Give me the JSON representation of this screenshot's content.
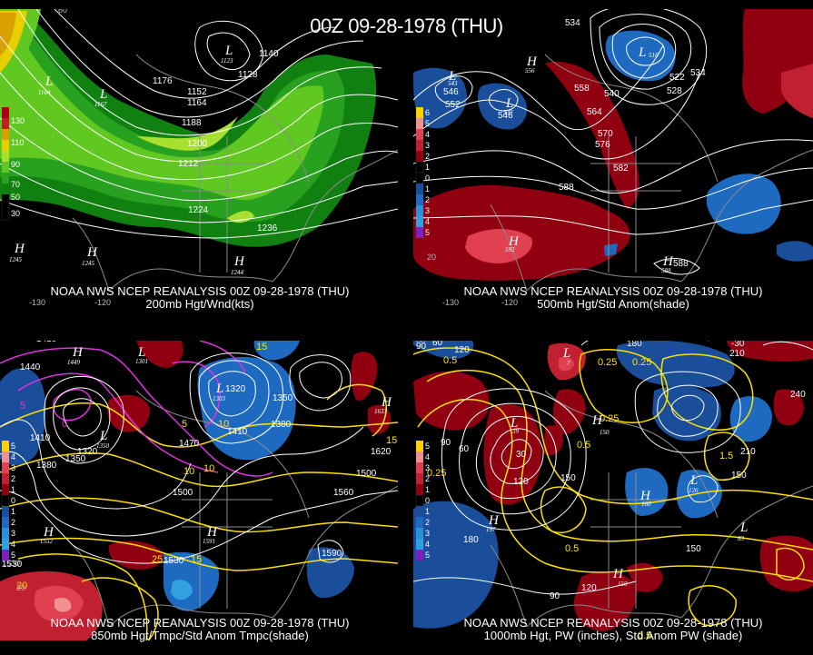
{
  "title": "00Z 09-28-1978 (THU)",
  "colors": {
    "background": "#000000",
    "wind_shades": [
      "#b00010",
      "#c02020",
      "#d8a000",
      "#e8d000",
      "#a8e030",
      "#60c820",
      "#28a020",
      "#108010"
    ],
    "anom_positive": [
      "#900010",
      "#c02030",
      "#e04050",
      "#f09090",
      "#ffd000"
    ],
    "anom_negative": [
      "#1a4e9a",
      "#1e6ac0",
      "#2a90d8",
      "#30a0e0",
      "#8020c0"
    ],
    "contour_white": "#ffffff",
    "contour_yellow": "#ffe000",
    "contour_magenta": "#e030e0"
  },
  "panels": [
    {
      "id": "200mb",
      "caption_line1": "NOAA NWS NCEP REANALYSIS 00Z 09-28-1978 (THU)",
      "caption_line2": "200mb Hgt/Wnd(kts)",
      "colorbar": [
        "130",
        "110",
        "90",
        "70",
        "50",
        "30"
      ],
      "contour_labels": [
        "1176",
        "1152",
        "1164",
        "1188",
        "1200",
        "1212",
        "1224",
        "1236",
        "1128",
        "1140"
      ],
      "centers": [
        {
          "type": "L",
          "value": "1164"
        },
        {
          "type": "L",
          "value": "1167"
        },
        {
          "type": "L",
          "value": "1123"
        },
        {
          "type": "H",
          "value": "1245"
        },
        {
          "type": "H",
          "value": "1245"
        },
        {
          "type": "H",
          "value": "1244"
        }
      ],
      "lon_labels": [
        "60",
        "-130",
        "-120"
      ]
    },
    {
      "id": "500mb",
      "caption_line1": "NOAA NWS NCEP REANALYSIS 00Z 09-28-1978 (THU)",
      "caption_line2": "500mb Hgt/Std Anom(shade)",
      "colorbar": [
        "6",
        "5",
        "4",
        "3",
        "2",
        "1",
        "0",
        "1",
        "2",
        "3",
        "4",
        "5"
      ],
      "contour_labels": [
        "534",
        "552",
        "546",
        "540",
        "546",
        "558",
        "564",
        "570",
        "576",
        "582",
        "588",
        "522",
        "528",
        "534",
        "588"
      ],
      "centers": [
        {
          "type": "L",
          "value": "543"
        },
        {
          "type": "H",
          "value": "556"
        },
        {
          "type": "L",
          "value": "532"
        },
        {
          "type": "L",
          "value": "516"
        },
        {
          "type": "H",
          "value": "592"
        },
        {
          "type": "H",
          "value": "588"
        }
      ],
      "lon_labels": [
        "20",
        "-130",
        "-120"
      ]
    },
    {
      "id": "850mb",
      "caption_line1": "NOAA NWS NCEP REANALYSIS 00Z 09-28-1978 (THU)",
      "caption_line2": "850mb Hgt/Tmpc/Std Anom Tmpc(shade)",
      "colorbar": [
        "5",
        "4",
        "3",
        "2",
        "1",
        "0",
        "1",
        "2",
        "3",
        "4",
        "5"
      ],
      "contour_labels": [
        "1410",
        "1440",
        "1380",
        "1350",
        "1320",
        "1470",
        "1500",
        "1530",
        "1560",
        "1620",
        "1590",
        "1410",
        "1380",
        "1320",
        "1350",
        "1410",
        "1500",
        "1530"
      ],
      "temp_labels": [
        "15",
        "10",
        "5",
        "0",
        "5",
        "10",
        "15",
        "20",
        "25",
        "15",
        "10"
      ],
      "centers": [
        {
          "type": "H",
          "value": "1449"
        },
        {
          "type": "L",
          "value": "1303"
        },
        {
          "type": "L",
          "value": "1350"
        },
        {
          "type": "L",
          "value": "1301"
        },
        {
          "type": "H",
          "value": "1633"
        },
        {
          "type": "H",
          "value": "1552"
        },
        {
          "type": "H",
          "value": "1591"
        }
      ],
      "lon_labels": [
        "20",
        "1530"
      ]
    },
    {
      "id": "1000mb",
      "caption_line1": "NOAA NWS NCEP REANALYSIS 00Z 09-28-1978 (THU)",
      "caption_line2": "1000mb Hgt, PW (inches), Std Anom PW (shade)",
      "colorbar": [
        "5",
        "4",
        "3",
        "2",
        "1",
        "0",
        "1",
        "2",
        "3",
        "4",
        "5"
      ],
      "contour_labels": [
        "60",
        "90",
        "120",
        "180",
        "30",
        "60",
        "90",
        "120",
        "150",
        "180",
        "210",
        "240",
        "-30",
        "150",
        "90",
        "120",
        "150",
        "210"
      ],
      "pw_labels": [
        "0.5",
        "0.25",
        "0.25",
        "0.25",
        "0.5",
        "0.5",
        "1.5",
        "0.25",
        "0.5"
      ],
      "centers": [
        {
          "type": "L",
          "value": "39"
        },
        {
          "type": "L",
          "value": "7"
        },
        {
          "type": "H",
          "value": "197"
        },
        {
          "type": "H",
          "value": "150"
        },
        {
          "type": "H",
          "value": "160"
        },
        {
          "type": "L",
          "value": "126"
        },
        {
          "type": "L",
          "value": "83"
        },
        {
          "type": "H",
          "value": "150"
        }
      ],
      "lon_labels": [
        "60"
      ]
    }
  ]
}
